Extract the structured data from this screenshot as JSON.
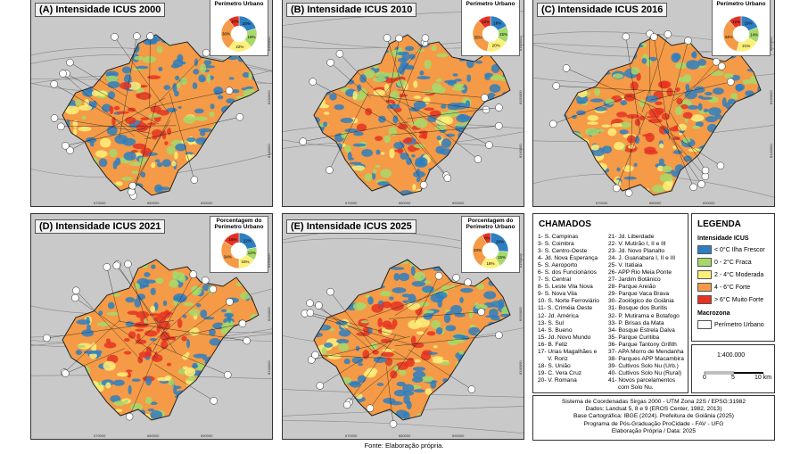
{
  "panels": [
    {
      "title": "(A) Intensidade ICUS 2000",
      "inset_title": "Perímetro Urbano",
      "year": 2000,
      "pie": [
        {
          "label": "20%",
          "value": 20,
          "color": "#2e7fc1"
        },
        {
          "label": "18%",
          "value": 18,
          "color": "#a6d96a"
        },
        {
          "label": "22%",
          "value": 22,
          "color": "#fdf07a"
        },
        {
          "label": "30%",
          "value": 30,
          "color": "#f59a46"
        },
        {
          "label": "10%",
          "value": 10,
          "color": "#e53222"
        }
      ]
    },
    {
      "title": "(B) Intensidade ICUS 2010",
      "inset_title": "Perímetro Urbano",
      "year": 2010,
      "pie": [
        {
          "label": "18%",
          "value": 18,
          "color": "#2e7fc1"
        },
        {
          "label": "15%",
          "value": 15,
          "color": "#a6d96a"
        },
        {
          "label": "20%",
          "value": 20,
          "color": "#fdf07a"
        },
        {
          "label": "35%",
          "value": 35,
          "color": "#f59a46"
        },
        {
          "label": "12%",
          "value": 12,
          "color": "#e53222"
        }
      ]
    },
    {
      "title": "(C) Intensidade ICUS 2016",
      "inset_title": "Perímetro Urbano",
      "year": 2016,
      "pie": [
        {
          "label": "19%",
          "value": 19,
          "color": "#2e7fc1"
        },
        {
          "label": "14%",
          "value": 14,
          "color": "#a6d96a"
        },
        {
          "label": "21%",
          "value": 21,
          "color": "#fdf07a"
        },
        {
          "label": "34%",
          "value": 34,
          "color": "#f59a46"
        },
        {
          "label": "12%",
          "value": 12,
          "color": "#e53222"
        }
      ]
    },
    {
      "title": "(D) Intensidade ICUS 2021",
      "inset_title": "Porcentagem do Perímetro Urbano",
      "year": 2021,
      "pie": [
        {
          "label": "22%",
          "value": 22,
          "color": "#2e7fc1"
        },
        {
          "label": "12%",
          "value": 12,
          "color": "#a6d96a"
        },
        {
          "label": "16%",
          "value": 16,
          "color": "#fdf07a"
        },
        {
          "label": "34%",
          "value": 34,
          "color": "#f59a46"
        },
        {
          "label": "16%",
          "value": 16,
          "color": "#e53222"
        }
      ]
    },
    {
      "title": "(E) Intensidade ICUS 2025",
      "inset_title": "Porcentagem do Perímetro Urbano",
      "year": 2025,
      "pie": [
        {
          "label": "26%",
          "value": 26,
          "color": "#2e7fc1"
        },
        {
          "label": "15%",
          "value": 15,
          "color": "#a6d96a"
        },
        {
          "label": "18%",
          "value": 18,
          "color": "#fdf07a"
        },
        {
          "label": "33%",
          "value": 33,
          "color": "#f59a46"
        },
        {
          "label": "8%",
          "value": 8,
          "color": "#e53222"
        }
      ]
    }
  ],
  "chamados": {
    "title": "CHAMADOS",
    "col1": [
      "1- S. Campinas",
      "3- S. Coimbra",
      "3- S. Centro-Oeste",
      "4- Jd. Nova Esperança",
      "5- S. Aeroporto",
      "6- S. dos Funcionários",
      "7- S. Central",
      "8- S. Leste Vila Nova",
      "9- S. Nova Vila",
      "10- S. Norte Ferroviário",
      "11- S. Criméia Oeste",
      "12- Jd. América",
      "13- S. Sul",
      "14- S. Bueno",
      "15- Jd. Novo Mundo",
      "16- B. Feliz",
      "17- Urias Magalhães e",
      "      V. Roriz",
      "18- S. União",
      "19- C. Vera Cruz",
      "20- V. Romana"
    ],
    "col2": [
      "21- Jd. Liberdade",
      "22- V. Mutirão I, II e III",
      "23- Jd. Novo Planalto",
      "24- J. Guanabara I, II e III",
      "25- V. Itatiaia",
      "26- APP Rio Meia Ponte",
      "27- Jardim Botânico",
      "28- Parque Areião",
      "29- Parque Vaca Brava",
      "30- Zoológico de Goiânia",
      "31- Bosque dos Buritis",
      "32- P. Mutirama e Botafogo",
      "33- P. Brisas da Mata",
      "34- Bosque Estrela Dalva",
      "35- Parque Curitiba",
      "36- Parque Tantony Grifith",
      "37- APA Morro de Mendanha",
      "38- Parques APP Macambira",
      "39- Cultivos Solo Nu (Urb.)",
      "40- Cultivos Solo Nu (Rural)",
      "41- Novos parcelamentos",
      "      com Solo Nu."
    ]
  },
  "legend": {
    "title": "LEGENDA",
    "intensity_title": "Intensidade ICUS",
    "items": [
      {
        "label": "< 0°C Ilha Frescor",
        "color": "#2e7fc1"
      },
      {
        "label": "0 - 2°C Fraca",
        "color": "#a6d96a"
      },
      {
        "label": "2 - 4°C Moderada",
        "color": "#fdf07a"
      },
      {
        "label": "4 - 6°C Forte",
        "color": "#f59a46"
      },
      {
        "label": "> 6°C Muito Forte",
        "color": "#e53222"
      }
    ],
    "macro_title": "Macrozona",
    "macro_item": "Perímetro Urbano"
  },
  "scale": {
    "ratio": "1:400.000",
    "ticks": [
      "0",
      "5",
      "10 km"
    ]
  },
  "info": [
    "Sistema de Coordenadas Sirgas 2000 - UTM Zona 22S / EPSG:31982",
    "Dados: Landsat 5, 8 e 9 (EROS Center, 1982, 2013)",
    "Base Cartográfica: IBGE (2024). Prefeitura de Goiânia (2025)",
    "Programa de Pós-Graduação ProCidade - FAV - UFG",
    "Elaboração Própria / Data: 2025"
  ],
  "source": "Fonte: Elaboração própria.",
  "coords_x": [
    "670000",
    "680000",
    "690000"
  ],
  "coords_y": [
    "8160000",
    "8150000",
    "8140000"
  ]
}
